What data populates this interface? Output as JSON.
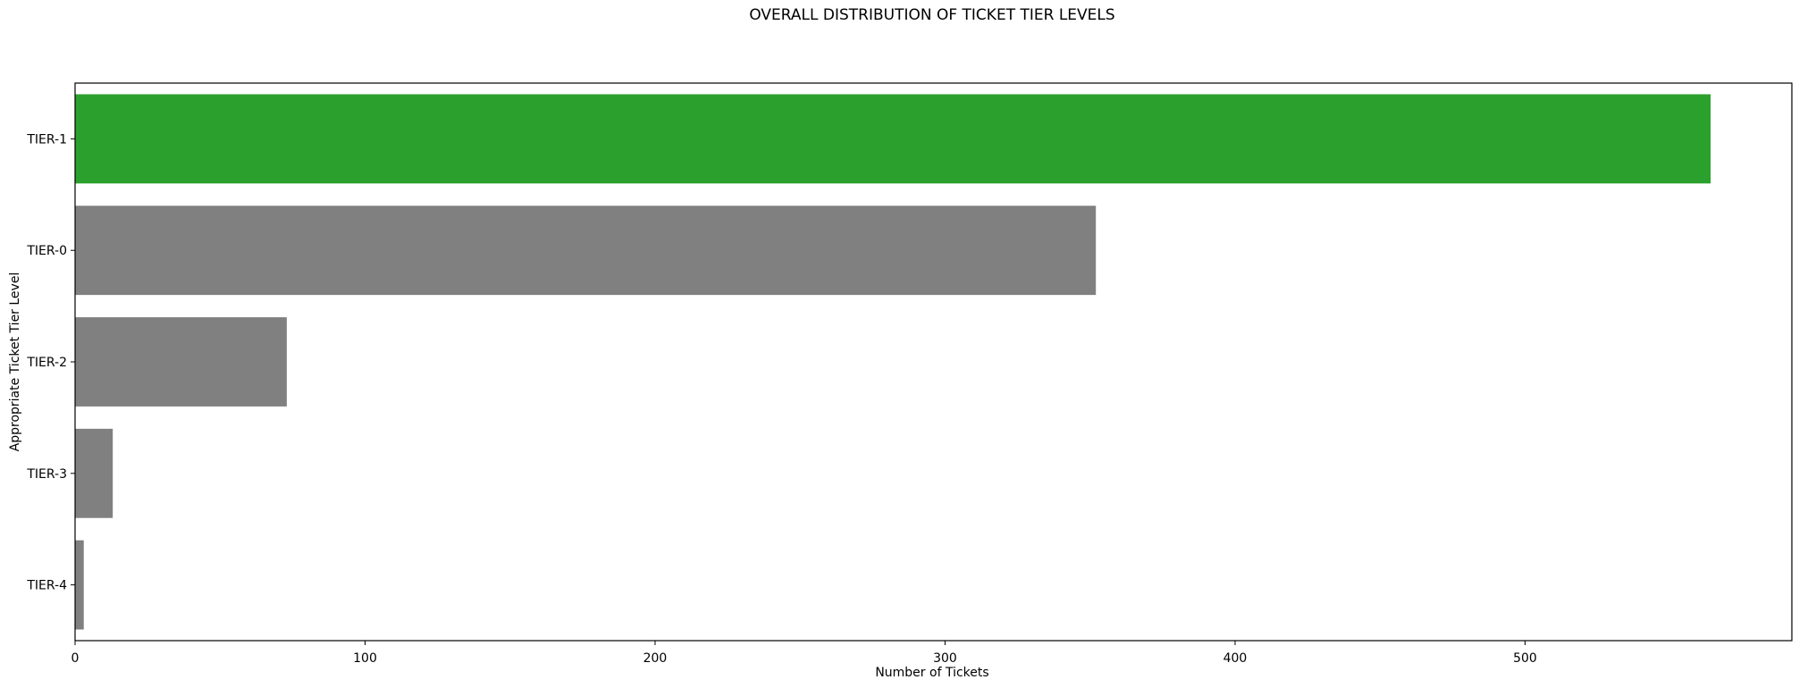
{
  "chart_data": {
    "type": "bar",
    "orientation": "horizontal",
    "title": "OVERALL DISTRIBUTION OF TICKET TIER LEVELS",
    "xlabel": "Number of Tickets",
    "ylabel": "Appropriate Ticket Tier Level",
    "categories": [
      "TIER-1",
      "TIER-0",
      "TIER-2",
      "TIER-3",
      "TIER-4"
    ],
    "values": [
      564,
      352,
      73,
      13,
      3
    ],
    "colors": [
      "#2ca02c",
      "#808080",
      "#808080",
      "#808080",
      "#808080"
    ],
    "xlim": [
      0,
      592
    ],
    "xticks": [
      0,
      100,
      200,
      300,
      400,
      500
    ],
    "grid": false
  }
}
